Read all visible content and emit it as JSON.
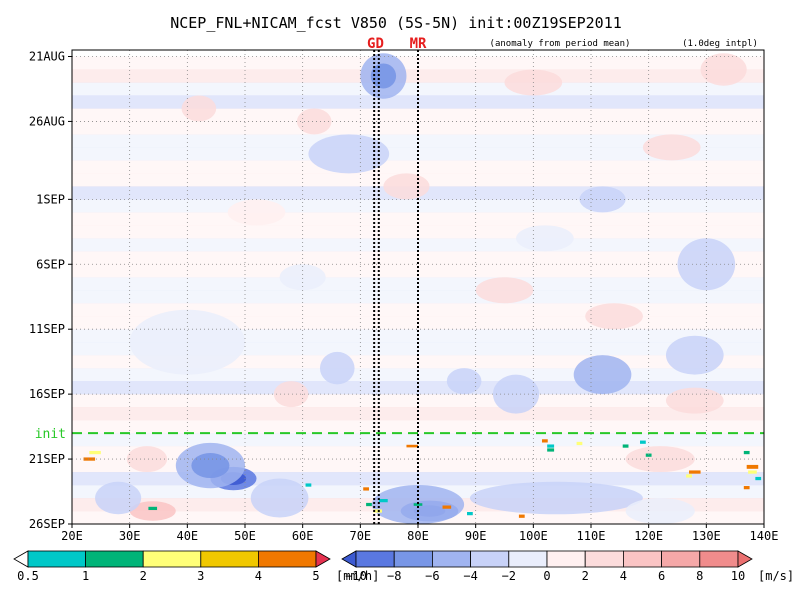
{
  "chart_data": {
    "type": "heatmap",
    "title": "NCEP_FNL+NICAM_fcst V850 (5S-5N) init:00Z19SEP2011",
    "annotation_left": "(anomaly from period mean)",
    "annotation_right": "(1.0deg intpl)",
    "x_ticks": [
      "20E",
      "30E",
      "40E",
      "50E",
      "60E",
      "70E",
      "80E",
      "90E",
      "100E",
      "110E",
      "120E",
      "130E",
      "140E"
    ],
    "x_range": [
      20,
      140
    ],
    "y_ticks": [
      {
        "label": "21AUG",
        "day": 0
      },
      {
        "label": "26AUG",
        "day": 5
      },
      {
        "label": "1SEP",
        "day": 11
      },
      {
        "label": "6SEP",
        "day": 16
      },
      {
        "label": "11SEP",
        "day": 21
      },
      {
        "label": "16SEP",
        "day": 26
      },
      {
        "label": "21SEP",
        "day": 31
      },
      {
        "label": "26SEP",
        "day": 36
      }
    ],
    "y_range_days": [
      -0.5,
      36
    ],
    "init_label": "init",
    "init_day": 29,
    "site_lines": [
      {
        "label": "GD",
        "lon": [
          72.4,
          73.2
        ]
      },
      {
        "label": "MR",
        "lon": [
          80.0
        ]
      }
    ],
    "grid": "dotted",
    "blobs": [
      {
        "lon": 48,
        "day": 32.5,
        "w": 8,
        "h": 1.8,
        "v": -9
      },
      {
        "lon": 44,
        "day": 31.5,
        "w": 12,
        "h": 3.5,
        "v": -6
      },
      {
        "lon": 56,
        "day": 34,
        "w": 10,
        "h": 3,
        "v": -4
      },
      {
        "lon": 82,
        "day": 35,
        "w": 10,
        "h": 1.6,
        "v": -9
      },
      {
        "lon": 80,
        "day": 34.5,
        "w": 16,
        "h": 3,
        "v": -5
      },
      {
        "lon": 34,
        "day": 35,
        "w": 8,
        "h": 1.5,
        "v": 4
      },
      {
        "lon": 33,
        "day": 31,
        "w": 7,
        "h": 2,
        "v": 2.5
      },
      {
        "lon": 28,
        "day": 34,
        "w": 8,
        "h": 2.5,
        "v": -3
      },
      {
        "lon": 74,
        "day": 1.5,
        "w": 8,
        "h": 3.5,
        "v": -6
      },
      {
        "lon": 68,
        "day": 7.5,
        "w": 14,
        "h": 3,
        "v": -3
      },
      {
        "lon": 62,
        "day": 5,
        "w": 6,
        "h": 2,
        "v": 3
      },
      {
        "lon": 42,
        "day": 4,
        "w": 6,
        "h": 2,
        "v": 2
      },
      {
        "lon": 78,
        "day": 10,
        "w": 8,
        "h": 2,
        "v": 2.5
      },
      {
        "lon": 124,
        "day": 7,
        "w": 10,
        "h": 2,
        "v": 2.5
      },
      {
        "lon": 133,
        "day": 1,
        "w": 8,
        "h": 2.5,
        "v": 3.5
      },
      {
        "lon": 100,
        "day": 2,
        "w": 10,
        "h": 2,
        "v": 2
      },
      {
        "lon": 112,
        "day": 11,
        "w": 8,
        "h": 2,
        "v": -2.5
      },
      {
        "lon": 130,
        "day": 16,
        "w": 10,
        "h": 4,
        "v": -3
      },
      {
        "lon": 114,
        "day": 20,
        "w": 10,
        "h": 2,
        "v": 2.5
      },
      {
        "lon": 112,
        "day": 24.5,
        "w": 10,
        "h": 3,
        "v": -4.5
      },
      {
        "lon": 128,
        "day": 23,
        "w": 10,
        "h": 3,
        "v": -3
      },
      {
        "lon": 97,
        "day": 26,
        "w": 8,
        "h": 3,
        "v": -3.5
      },
      {
        "lon": 88,
        "day": 25,
        "w": 6,
        "h": 2,
        "v": -3
      },
      {
        "lon": 66,
        "day": 24,
        "w": 6,
        "h": 2.5,
        "v": -3
      },
      {
        "lon": 58,
        "day": 26,
        "w": 6,
        "h": 2,
        "v": 2
      },
      {
        "lon": 40,
        "day": 22,
        "w": 20,
        "h": 5,
        "v": -1.5
      },
      {
        "lon": 104,
        "day": 34,
        "w": 30,
        "h": 2.5,
        "v": -2.5
      },
      {
        "lon": 122,
        "day": 31,
        "w": 12,
        "h": 2,
        "v": 2.5
      },
      {
        "lon": 122,
        "day": 35,
        "w": 12,
        "h": 2,
        "v": -2
      },
      {
        "lon": 128,
        "day": 26.5,
        "w": 10,
        "h": 2,
        "v": 2
      },
      {
        "lon": 95,
        "day": 18,
        "w": 10,
        "h": 2,
        "v": 2
      },
      {
        "lon": 102,
        "day": 14,
        "w": 10,
        "h": 2,
        "v": -2
      },
      {
        "lon": 52,
        "day": 12,
        "w": 10,
        "h": 2,
        "v": 1.8
      },
      {
        "lon": 60,
        "day": 17,
        "w": 8,
        "h": 2,
        "v": -2
      }
    ],
    "rain_spots": [
      {
        "lon": 24,
        "day": 30.5,
        "lw": 2,
        "dh": 0.25,
        "c": 2.5
      },
      {
        "lon": 23,
        "day": 31,
        "lw": 2,
        "dh": 0.25,
        "c": 4.5
      },
      {
        "lon": 34,
        "day": 34.8,
        "lw": 1.5,
        "dh": 0.25,
        "c": 1.5
      },
      {
        "lon": 61,
        "day": 33,
        "lw": 1,
        "dh": 0.25,
        "c": 0.8
      },
      {
        "lon": 71,
        "day": 33.3,
        "lw": 1,
        "dh": 0.25,
        "c": 4.5
      },
      {
        "lon": 71.5,
        "day": 34.5,
        "lw": 1,
        "dh": 0.25,
        "c": 1.5
      },
      {
        "lon": 73,
        "day": 35,
        "lw": 1.5,
        "dh": 0.25,
        "c": 2.5
      },
      {
        "lon": 74,
        "day": 34.2,
        "lw": 1.5,
        "dh": 0.25,
        "c": 0.8
      },
      {
        "lon": 79,
        "day": 30,
        "lw": 2,
        "dh": 0.2,
        "c": 4.5
      },
      {
        "lon": 80,
        "day": 34.5,
        "lw": 1.5,
        "dh": 0.2,
        "c": 1.5
      },
      {
        "lon": 85,
        "day": 34.7,
        "lw": 1.5,
        "dh": 0.25,
        "c": 4.5
      },
      {
        "lon": 89,
        "day": 35.2,
        "lw": 1,
        "dh": 0.25,
        "c": 0.8
      },
      {
        "lon": 98,
        "day": 35.4,
        "lw": 1,
        "dh": 0.25,
        "c": 4.5
      },
      {
        "lon": 102,
        "day": 29.6,
        "lw": 1,
        "dh": 0.25,
        "c": 4.5
      },
      {
        "lon": 103,
        "day": 30,
        "lw": 1.2,
        "dh": 0.25,
        "c": 0.8
      },
      {
        "lon": 103,
        "day": 30.3,
        "lw": 1.2,
        "dh": 0.25,
        "c": 1.5
      },
      {
        "lon": 108,
        "day": 29.8,
        "lw": 1,
        "dh": 0.25,
        "c": 2.5
      },
      {
        "lon": 116,
        "day": 30,
        "lw": 1,
        "dh": 0.25,
        "c": 1.5
      },
      {
        "lon": 119,
        "day": 29.7,
        "lw": 1,
        "dh": 0.25,
        "c": 0.8
      },
      {
        "lon": 120,
        "day": 30.7,
        "lw": 1,
        "dh": 0.25,
        "c": 1.5
      },
      {
        "lon": 128,
        "day": 32,
        "lw": 2,
        "dh": 0.25,
        "c": 4.5
      },
      {
        "lon": 127,
        "day": 32.3,
        "lw": 1,
        "dh": 0.25,
        "c": 2.5
      },
      {
        "lon": 137,
        "day": 30.5,
        "lw": 1,
        "dh": 0.25,
        "c": 1.5
      },
      {
        "lon": 138,
        "day": 31.6,
        "lw": 2,
        "dh": 0.3,
        "c": 4.5
      },
      {
        "lon": 138,
        "day": 32,
        "lw": 1.5,
        "dh": 0.25,
        "c": 2.5
      },
      {
        "lon": 139,
        "day": 32.5,
        "lw": 1,
        "dh": 0.25,
        "c": 0.8
      },
      {
        "lon": 137,
        "day": 33.2,
        "lw": 1,
        "dh": 0.25,
        "c": 4.5
      }
    ],
    "rain_colorbar": {
      "levels": [
        "0.5",
        "1",
        "2",
        "3",
        "4",
        "5"
      ],
      "unit": "[mm/h]",
      "colors": [
        "#ffffff",
        "#00c8c8",
        "#00b478",
        "#ffff78",
        "#f0c800",
        "#f07800",
        "#e63250"
      ]
    },
    "wind_colorbar": {
      "levels": [
        "−10",
        "−8",
        "−6",
        "−4",
        "−2",
        "0",
        "2",
        "4",
        "6",
        "8",
        "10"
      ],
      "unit": "[m/s]",
      "colors": [
        "#3c5ad2",
        "#5a78e1",
        "#7896e6",
        "#a0b4f0",
        "#c8d2f8",
        "#eaeefc",
        "#fff0f0",
        "#fcdcdc",
        "#fac4c4",
        "#f5a8a8",
        "#f08c8c",
        "#eb7070"
      ]
    }
  }
}
